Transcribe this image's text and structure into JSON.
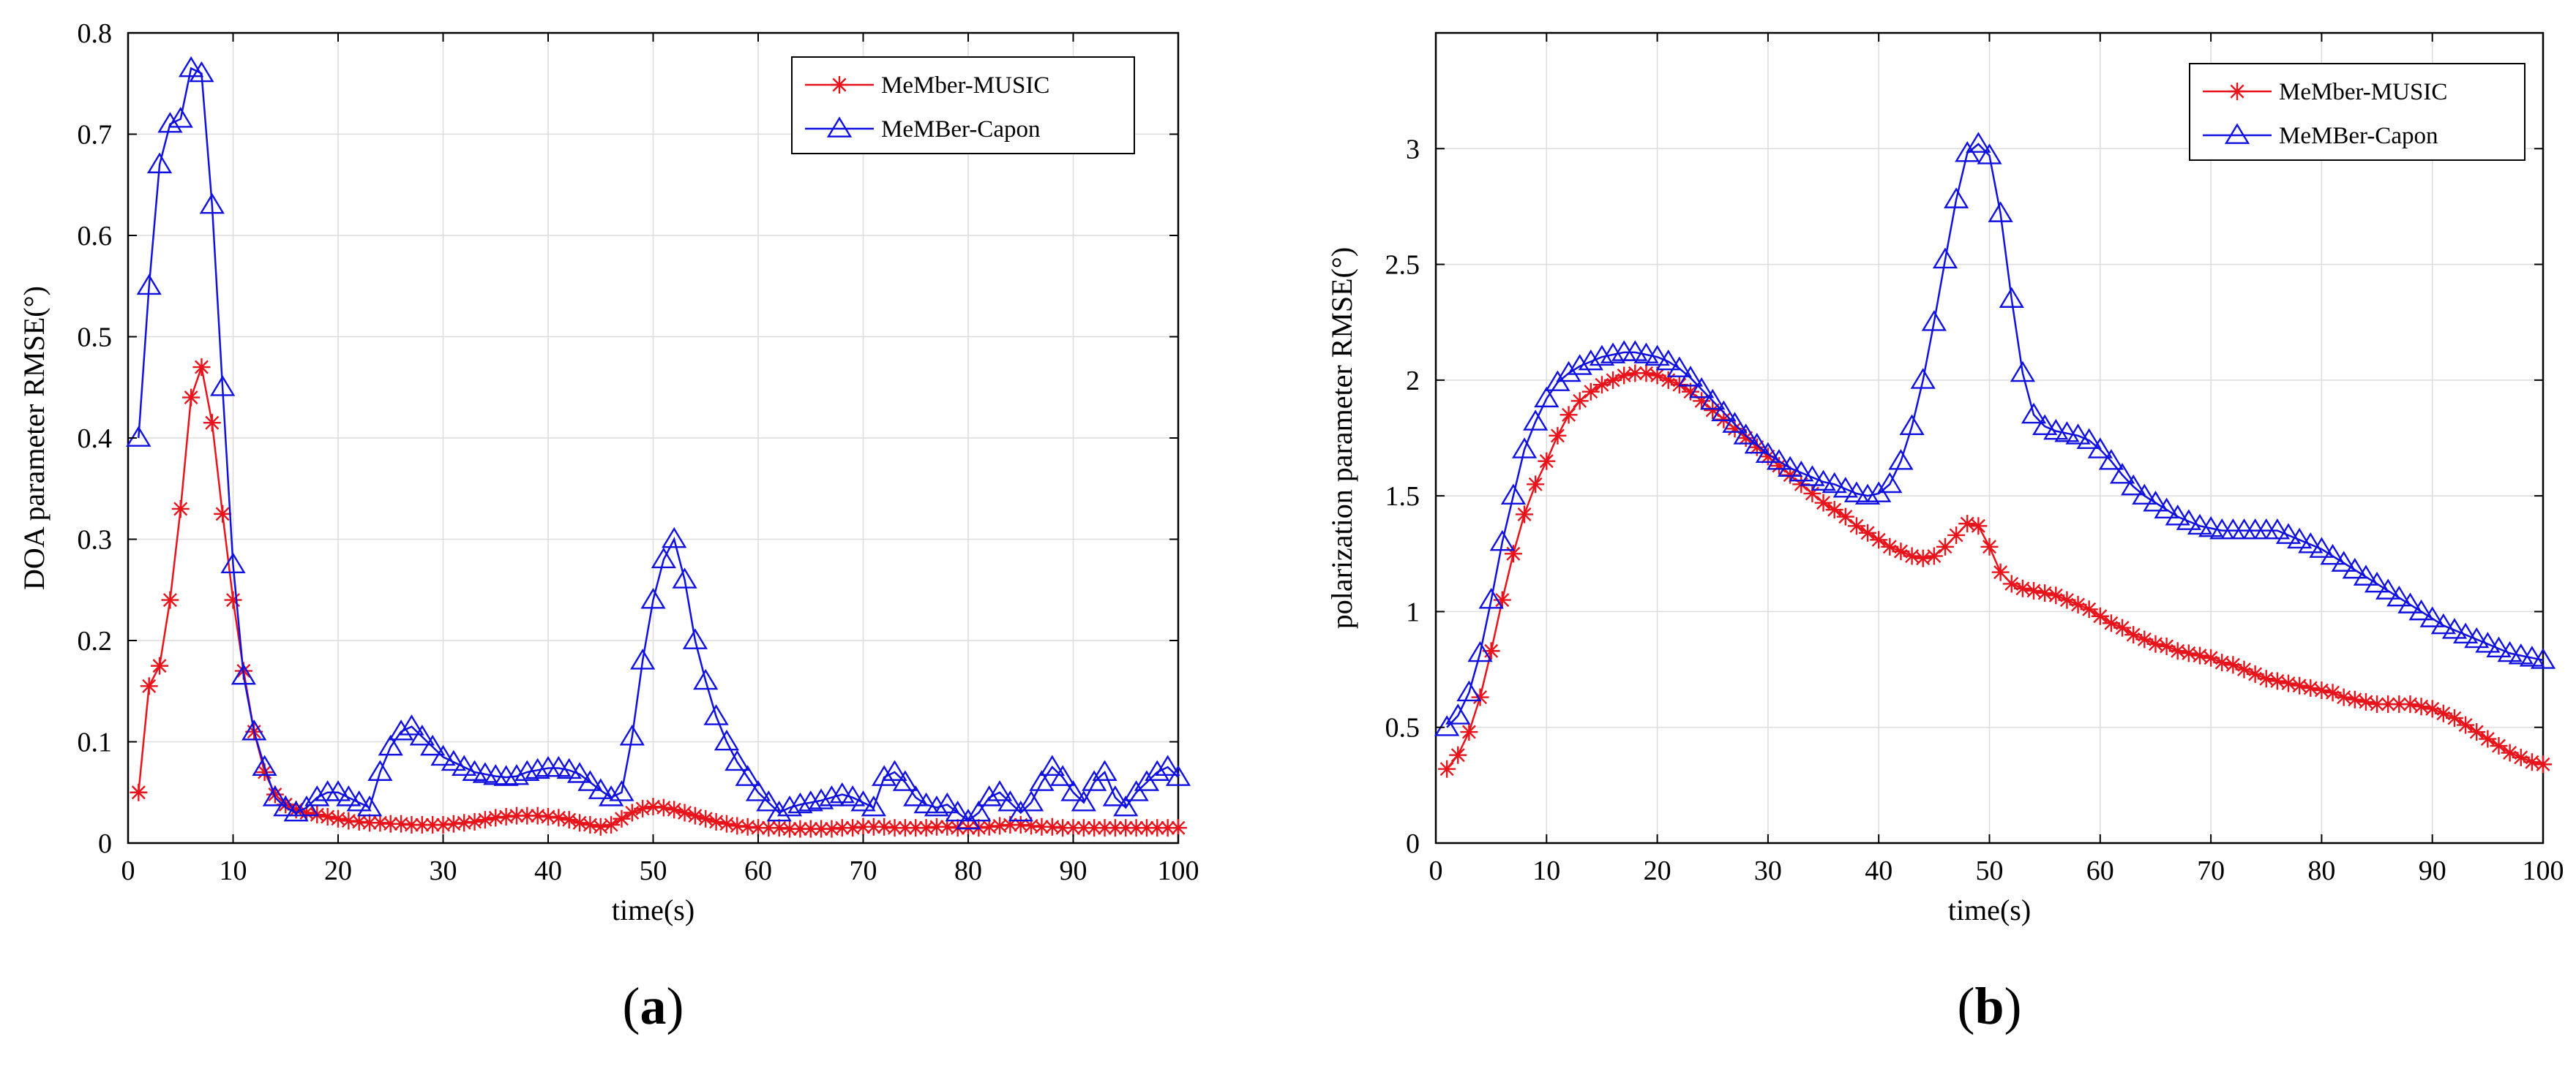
{
  "panels": [
    {
      "label_open": "(",
      "label_letter": "a",
      "label_close": ")"
    },
    {
      "label_open": "(",
      "label_letter": "b",
      "label_close": ")"
    }
  ],
  "colors": {
    "music": "#e8131b",
    "capon": "#1010e0",
    "axis": "#000000",
    "grid": "#dcdcdc"
  },
  "chart_data": [
    {
      "type": "line",
      "title": "",
      "xlabel": "time(s)",
      "ylabel": "DOA parameter RMSE(°)",
      "xlim": [
        0,
        100
      ],
      "ylim": [
        0,
        0.8
      ],
      "xticks": [
        0,
        10,
        20,
        30,
        40,
        50,
        60,
        70,
        80,
        90,
        100
      ],
      "yticks": [
        0,
        0.1,
        0.2,
        0.3,
        0.4,
        0.5,
        0.6,
        0.7,
        0.8
      ],
      "ytick_labels": [
        "0",
        "0.1",
        "0.2",
        "0.3",
        "0.4",
        "0.5",
        "0.6",
        "0.7",
        "0.8"
      ],
      "grid": true,
      "legend_position": "top-right",
      "series": [
        {
          "name": "MeMber-MUSIC",
          "marker": "asterisk",
          "color": "#e8131b",
          "x": [
            1,
            2,
            3,
            4,
            5,
            6,
            7,
            8,
            9,
            10,
            11,
            12,
            13,
            14,
            15,
            16,
            17,
            18,
            19,
            20,
            21,
            22,
            23,
            24,
            25,
            26,
            27,
            28,
            29,
            30,
            31,
            32,
            33,
            34,
            35,
            36,
            37,
            38,
            39,
            40,
            41,
            42,
            43,
            44,
            45,
            46,
            47,
            48,
            49,
            50,
            51,
            52,
            53,
            54,
            55,
            56,
            57,
            58,
            59,
            60,
            61,
            62,
            63,
            64,
            65,
            66,
            67,
            68,
            69,
            70,
            71,
            72,
            73,
            74,
            75,
            76,
            77,
            78,
            79,
            80,
            81,
            82,
            83,
            84,
            85,
            86,
            87,
            88,
            89,
            90,
            91,
            92,
            93,
            94,
            95,
            96,
            97,
            98,
            99,
            100
          ],
          "values": [
            0.05,
            0.155,
            0.175,
            0.24,
            0.33,
            0.44,
            0.47,
            0.415,
            0.325,
            0.24,
            0.17,
            0.11,
            0.07,
            0.048,
            0.038,
            0.033,
            0.03,
            0.028,
            0.026,
            0.024,
            0.022,
            0.021,
            0.02,
            0.02,
            0.019,
            0.019,
            0.018,
            0.018,
            0.018,
            0.018,
            0.019,
            0.02,
            0.021,
            0.023,
            0.025,
            0.026,
            0.027,
            0.027,
            0.027,
            0.026,
            0.025,
            0.023,
            0.02,
            0.018,
            0.016,
            0.018,
            0.024,
            0.03,
            0.034,
            0.036,
            0.035,
            0.033,
            0.03,
            0.027,
            0.024,
            0.021,
            0.019,
            0.017,
            0.016,
            0.015,
            0.015,
            0.015,
            0.014,
            0.014,
            0.014,
            0.014,
            0.014,
            0.015,
            0.015,
            0.016,
            0.016,
            0.016,
            0.015,
            0.015,
            0.015,
            0.015,
            0.016,
            0.016,
            0.015,
            0.015,
            0.015,
            0.016,
            0.017,
            0.018,
            0.018,
            0.017,
            0.016,
            0.016,
            0.015,
            0.015,
            0.015,
            0.015,
            0.015,
            0.015,
            0.015,
            0.015,
            0.015,
            0.015,
            0.015,
            0.015
          ]
        },
        {
          "name": "MeMBer-Capon",
          "marker": "triangle",
          "color": "#1010e0",
          "x": [
            1,
            2,
            3,
            4,
            5,
            6,
            7,
            8,
            9,
            10,
            11,
            12,
            13,
            14,
            15,
            16,
            17,
            18,
            19,
            20,
            21,
            22,
            23,
            24,
            25,
            26,
            27,
            28,
            29,
            30,
            31,
            32,
            33,
            34,
            35,
            36,
            37,
            38,
            39,
            40,
            41,
            42,
            43,
            44,
            45,
            46,
            47,
            48,
            49,
            50,
            51,
            52,
            53,
            54,
            55,
            56,
            57,
            58,
            59,
            60,
            61,
            62,
            63,
            64,
            65,
            66,
            67,
            68,
            69,
            70,
            71,
            72,
            73,
            74,
            75,
            76,
            77,
            78,
            79,
            80,
            81,
            82,
            83,
            84,
            85,
            86,
            87,
            88,
            89,
            90,
            91,
            92,
            93,
            94,
            95,
            96,
            97,
            98,
            99,
            100
          ],
          "values": [
            0.4,
            0.55,
            0.67,
            0.71,
            0.715,
            0.765,
            0.76,
            0.63,
            0.45,
            0.275,
            0.165,
            0.11,
            0.075,
            0.045,
            0.035,
            0.03,
            0.035,
            0.045,
            0.05,
            0.05,
            0.045,
            0.04,
            0.035,
            0.07,
            0.095,
            0.11,
            0.115,
            0.105,
            0.095,
            0.085,
            0.08,
            0.075,
            0.07,
            0.068,
            0.066,
            0.065,
            0.066,
            0.07,
            0.072,
            0.074,
            0.074,
            0.072,
            0.068,
            0.06,
            0.052,
            0.045,
            0.05,
            0.105,
            0.18,
            0.24,
            0.28,
            0.3,
            0.26,
            0.2,
            0.16,
            0.125,
            0.1,
            0.08,
            0.065,
            0.05,
            0.04,
            0.03,
            0.035,
            0.038,
            0.04,
            0.042,
            0.045,
            0.048,
            0.045,
            0.04,
            0.035,
            0.065,
            0.07,
            0.06,
            0.045,
            0.038,
            0.035,
            0.038,
            0.03,
            0.022,
            0.03,
            0.045,
            0.05,
            0.04,
            0.03,
            0.04,
            0.06,
            0.075,
            0.065,
            0.05,
            0.04,
            0.06,
            0.07,
            0.045,
            0.035,
            0.05,
            0.06,
            0.07,
            0.075,
            0.065
          ]
        }
      ]
    },
    {
      "type": "line",
      "title": "",
      "xlabel": "time(s)",
      "ylabel": "polarization parameter RMSE(°)",
      "xlim": [
        0,
        100
      ],
      "ylim": [
        0,
        3.5
      ],
      "xticks": [
        0,
        10,
        20,
        30,
        40,
        50,
        60,
        70,
        80,
        90,
        100
      ],
      "yticks": [
        0,
        0.5,
        1,
        1.5,
        2,
        2.5,
        3
      ],
      "ytick_labels": [
        "0",
        "0.5",
        "1",
        "1.5",
        "2",
        "2.5",
        "3"
      ],
      "grid": true,
      "legend_position": "top-right",
      "series": [
        {
          "name": "MeMber-MUSIC",
          "marker": "asterisk",
          "color": "#e8131b",
          "x": [
            1,
            2,
            3,
            4,
            5,
            6,
            7,
            8,
            9,
            10,
            11,
            12,
            13,
            14,
            15,
            16,
            17,
            18,
            19,
            20,
            21,
            22,
            23,
            24,
            25,
            26,
            27,
            28,
            29,
            30,
            31,
            32,
            33,
            34,
            35,
            36,
            37,
            38,
            39,
            40,
            41,
            42,
            43,
            44,
            45,
            46,
            47,
            48,
            49,
            50,
            51,
            52,
            53,
            54,
            55,
            56,
            57,
            58,
            59,
            60,
            61,
            62,
            63,
            64,
            65,
            66,
            67,
            68,
            69,
            70,
            71,
            72,
            73,
            74,
            75,
            76,
            77,
            78,
            79,
            80,
            81,
            82,
            83,
            84,
            85,
            86,
            87,
            88,
            89,
            90,
            91,
            92,
            93,
            94,
            95,
            96,
            97,
            98,
            99,
            100
          ],
          "values": [
            0.32,
            0.38,
            0.48,
            0.63,
            0.83,
            1.05,
            1.25,
            1.42,
            1.55,
            1.65,
            1.76,
            1.85,
            1.91,
            1.95,
            1.98,
            2.0,
            2.02,
            2.03,
            2.03,
            2.02,
            2.0,
            1.98,
            1.95,
            1.91,
            1.87,
            1.83,
            1.79,
            1.75,
            1.71,
            1.67,
            1.63,
            1.59,
            1.55,
            1.51,
            1.47,
            1.44,
            1.41,
            1.37,
            1.34,
            1.31,
            1.28,
            1.26,
            1.24,
            1.23,
            1.24,
            1.28,
            1.33,
            1.38,
            1.37,
            1.28,
            1.17,
            1.12,
            1.1,
            1.09,
            1.08,
            1.07,
            1.05,
            1.03,
            1.01,
            0.98,
            0.95,
            0.93,
            0.9,
            0.88,
            0.86,
            0.85,
            0.83,
            0.82,
            0.81,
            0.8,
            0.78,
            0.77,
            0.75,
            0.73,
            0.71,
            0.7,
            0.69,
            0.68,
            0.67,
            0.66,
            0.65,
            0.63,
            0.62,
            0.61,
            0.6,
            0.6,
            0.6,
            0.6,
            0.59,
            0.58,
            0.56,
            0.54,
            0.51,
            0.48,
            0.45,
            0.42,
            0.39,
            0.37,
            0.35,
            0.34
          ]
        },
        {
          "name": "MeMBer-Capon",
          "marker": "triangle",
          "color": "#1010e0",
          "x": [
            1,
            2,
            3,
            4,
            5,
            6,
            7,
            8,
            9,
            10,
            11,
            12,
            13,
            14,
            15,
            16,
            17,
            18,
            19,
            20,
            21,
            22,
            23,
            24,
            25,
            26,
            27,
            28,
            29,
            30,
            31,
            32,
            33,
            34,
            35,
            36,
            37,
            38,
            39,
            40,
            41,
            42,
            43,
            44,
            45,
            46,
            47,
            48,
            49,
            50,
            51,
            52,
            53,
            54,
            55,
            56,
            57,
            58,
            59,
            60,
            61,
            62,
            63,
            64,
            65,
            66,
            67,
            68,
            69,
            70,
            71,
            72,
            73,
            74,
            75,
            76,
            77,
            78,
            79,
            80,
            81,
            82,
            83,
            84,
            85,
            86,
            87,
            88,
            89,
            90,
            91,
            92,
            93,
            94,
            95,
            96,
            97,
            98,
            99,
            100
          ],
          "values": [
            0.5,
            0.55,
            0.65,
            0.82,
            1.05,
            1.3,
            1.5,
            1.7,
            1.82,
            1.92,
            1.99,
            2.03,
            2.06,
            2.08,
            2.1,
            2.11,
            2.12,
            2.12,
            2.11,
            2.1,
            2.08,
            2.05,
            2.01,
            1.96,
            1.91,
            1.86,
            1.81,
            1.76,
            1.72,
            1.68,
            1.65,
            1.62,
            1.6,
            1.58,
            1.56,
            1.55,
            1.53,
            1.51,
            1.5,
            1.51,
            1.55,
            1.65,
            1.8,
            2.0,
            2.25,
            2.52,
            2.78,
            2.98,
            3.02,
            2.97,
            2.72,
            2.35,
            2.03,
            1.85,
            1.8,
            1.78,
            1.77,
            1.76,
            1.74,
            1.7,
            1.65,
            1.59,
            1.54,
            1.5,
            1.47,
            1.44,
            1.41,
            1.39,
            1.37,
            1.36,
            1.35,
            1.35,
            1.35,
            1.35,
            1.35,
            1.35,
            1.33,
            1.31,
            1.29,
            1.27,
            1.24,
            1.21,
            1.18,
            1.15,
            1.12,
            1.09,
            1.06,
            1.03,
            1.0,
            0.97,
            0.94,
            0.92,
            0.9,
            0.88,
            0.86,
            0.84,
            0.82,
            0.81,
            0.8,
            0.79
          ]
        }
      ]
    }
  ]
}
